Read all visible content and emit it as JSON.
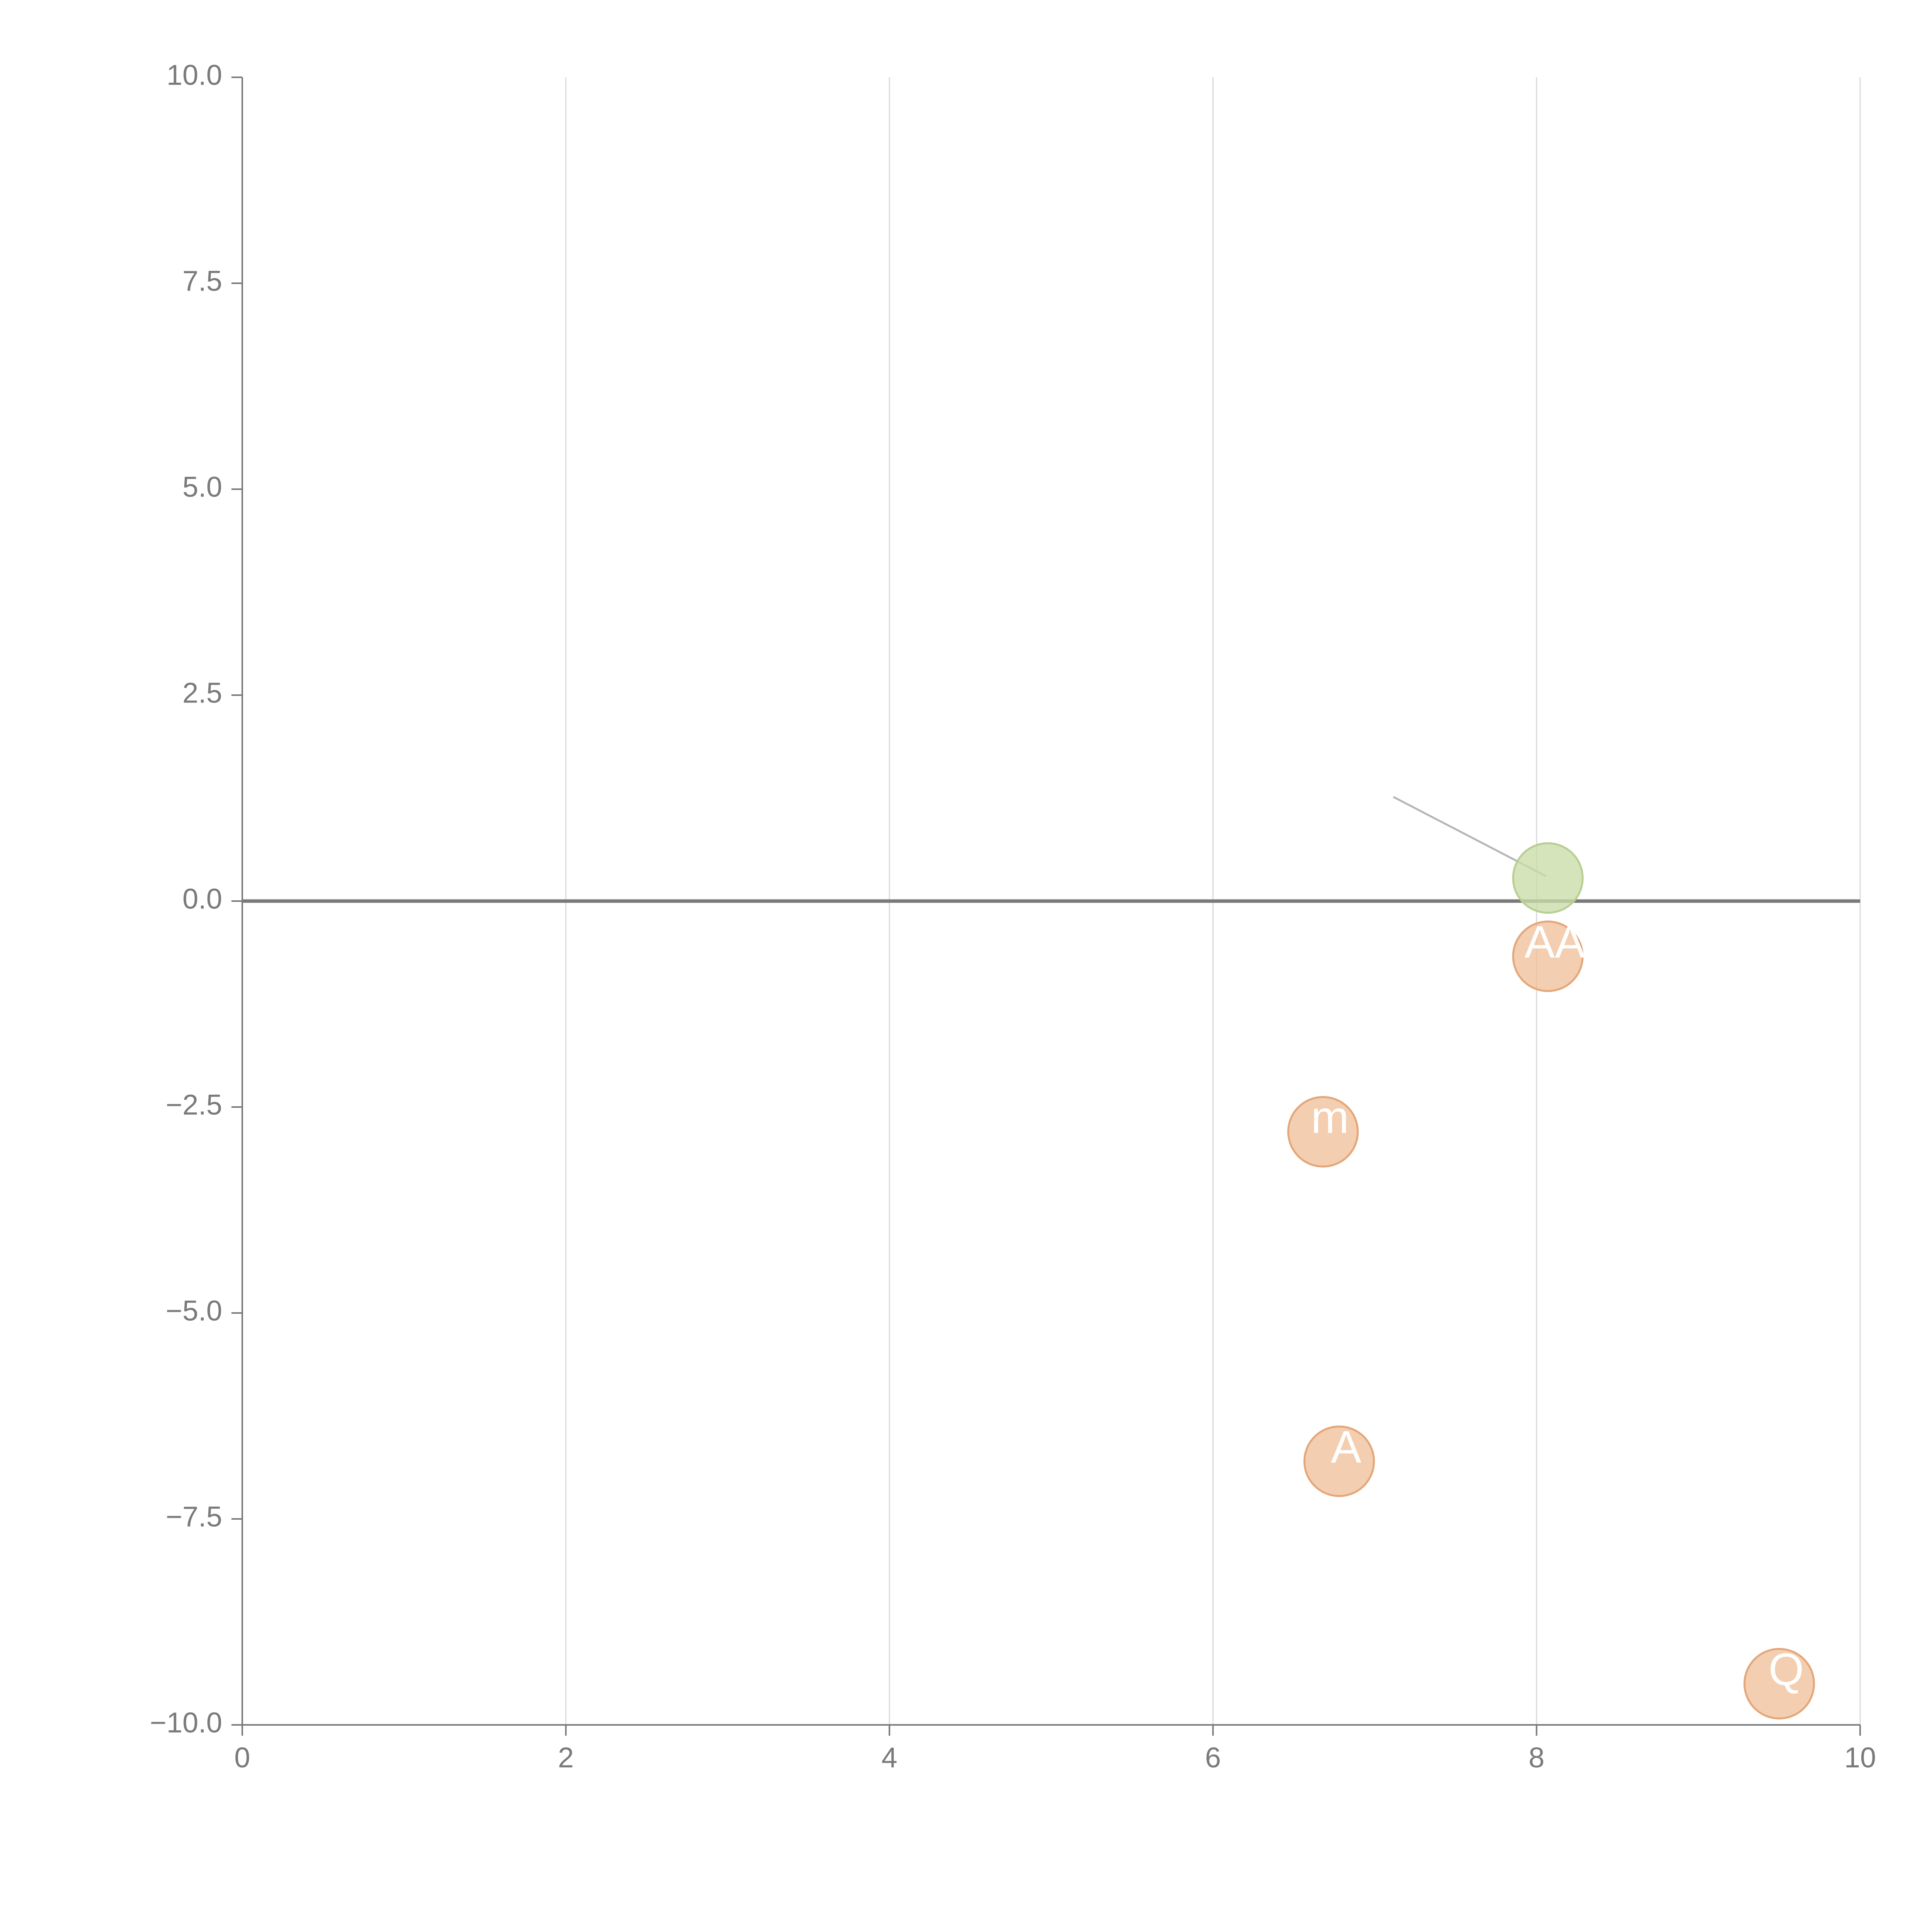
{
  "chart_data": {
    "type": "scatter",
    "title": "",
    "xlabel": "",
    "ylabel": "",
    "xlim": [
      0,
      10
    ],
    "ylim": [
      -10,
      10
    ],
    "x_ticks": [
      0,
      2,
      4,
      6,
      8,
      10
    ],
    "x_tick_labels": [
      "0",
      "2",
      "4",
      "6",
      "8",
      "10"
    ],
    "y_ticks": [
      10,
      7.5,
      5,
      2.5,
      0,
      -2.5,
      -5,
      -7.5,
      -10
    ],
    "y_tick_labels": [
      "10.0",
      "7.5",
      "5.0",
      "2.5",
      "0.0",
      "−2.5",
      "−5.0",
      "−7.5",
      "−10.0"
    ],
    "grid": {
      "vertical": true,
      "horizontal": false
    },
    "zero_line": 0,
    "colors": {
      "positive": "#c9dda8",
      "negative": "#f0c09a",
      "positive_edge": "#b7cf92",
      "negative_edge": "#e4a679",
      "grid": "#d9d9d9",
      "axis": "#7a7a7a",
      "connector": "#b5b5b5"
    },
    "points": [
      {
        "x": 8.07,
        "y": 0.28,
        "label": "",
        "color": "positive"
      },
      {
        "x": 8.07,
        "y": -0.67,
        "label": "AA",
        "color": "negative"
      },
      {
        "x": 6.68,
        "y": -2.8,
        "label": "m",
        "color": "negative"
      },
      {
        "x": 6.78,
        "y": -6.8,
        "label": "A",
        "color": "negative"
      },
      {
        "x": 9.5,
        "y": -9.5,
        "label": "Q",
        "color": "negative"
      }
    ]
  }
}
